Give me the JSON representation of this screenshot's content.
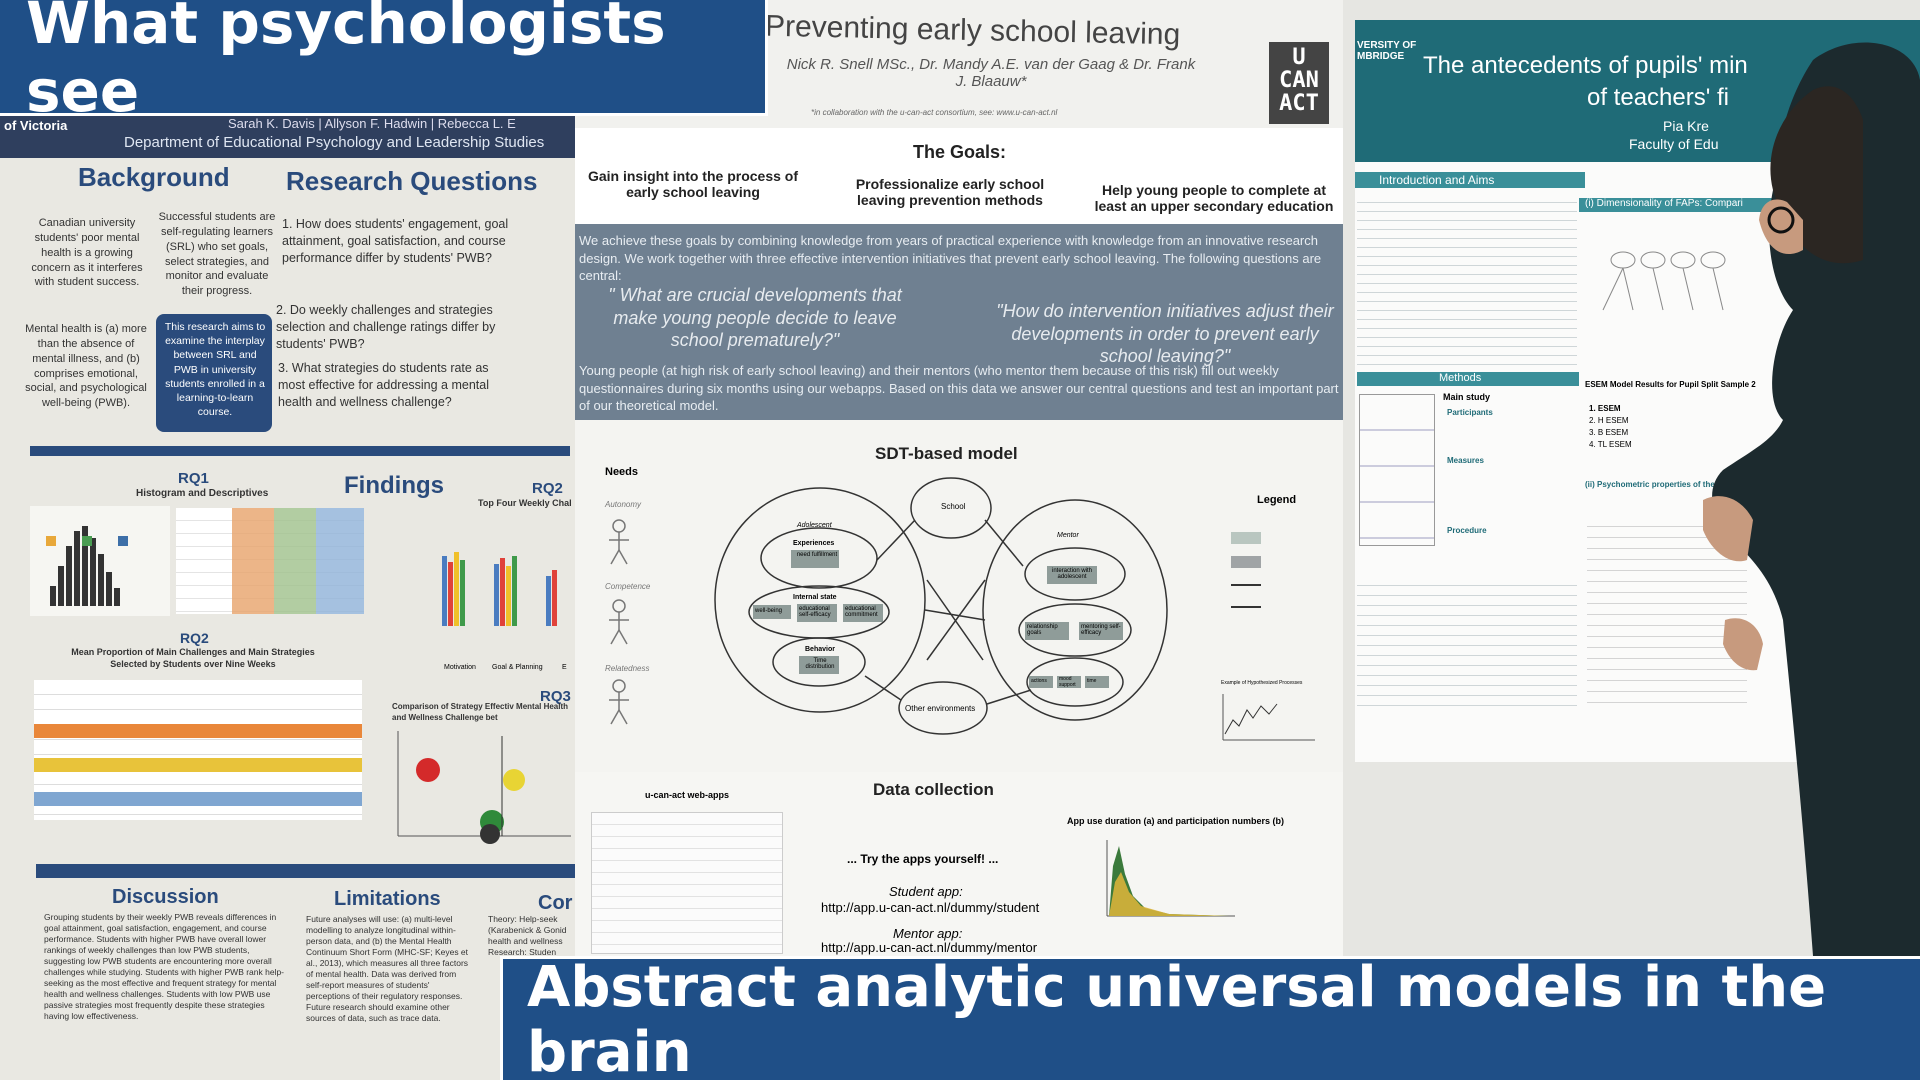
{
  "captions": {
    "top": "What psychologists see",
    "bottom": "Abstract analytic universal models in the brain"
  },
  "poster_left": {
    "affiliation": "of Victoria",
    "authors": "Sarah K. Davis | Allyson F. Hadwin | Rebecca L. E",
    "department": "Department of Educational Psychology and Leadership Studies",
    "background_title": "Background",
    "research_questions_title": "Research Questions",
    "background_col1": "Canadian university students' poor mental health is a growing concern as it interferes with student success.",
    "background_col2": "Successful students are self-regulating learners (SRL) who set goals, select strategies, and monitor and evaluate their progress.",
    "mental_health": "Mental health is (a) more than the absence of mental illness, and (b) comprises emotional, social, and psychological well-being (PWB).",
    "aims": "This research aims to examine the interplay between SRL and PWB in university students enrolled in a learning-to-learn course.",
    "rq_items": [
      "1. How does students' engagement, goal attainment, goal satisfaction, and course performance differ by students' PWB?",
      "2. Do weekly challenges and strategies selection and challenge ratings differ by students' PWB?",
      "3. What strategies do students rate as most effective for addressing a mental health and wellness challenge?"
    ],
    "rq1_title": "RQ1",
    "rq1_sub": "Histogram and Descriptives",
    "findings_title": "Findings",
    "rq2_title": "RQ2",
    "rq2_top": "Top Four Weekly Chal",
    "rq2_sub": "RQ2",
    "rq2_caption": "Mean Proportion of Main Challenges and Main Strategies Selected by Students over Nine Weeks",
    "rq3_title": "RQ3",
    "rq3_caption": "Comparison of Strategy Effectiv Mental Health and Wellness Challenge bet",
    "bar_labels": [
      "Motivation",
      "Goal & Planning",
      "E"
    ],
    "discussion_title": "Discussion",
    "limitations_title": "Limitations",
    "conclusion_title": "Cor",
    "discussion_text": "Grouping students by their weekly PWB reveals differences in goal attainment, goal satisfaction, engagement, and course performance. Students with higher PWB have overall lower rankings of weekly challenges than low PWB students, suggesting low PWB students are encountering more overall challenges while studying. Students with higher PWB rank help-seeking as the most effective and frequent strategy for mental health and wellness challenges. Students with low PWB use passive strategies most frequently despite these strategies having low effectiveness.",
    "limitations_text": "Future analyses will use: (a) multi-level modelling to analyze longitudinal within-person data, and (b) the Mental Health Continuum Short Form (MHC-SF; Keyes et al., 2013), which measures all three factors of mental health. Data was derived from self-report measures of students' perceptions of their regulatory responses. Future research should examine other sources of data, such as trace data.",
    "conclusion_text": "Theory: Help-seek (Karabenick & Gonid health and wellness Research: Studen"
  },
  "poster_middle": {
    "title": "Preventing early school leaving",
    "authors": "Nick R. Snell MSc., Dr. Mandy A.E. van der Gaag & Dr. Frank J. Blaauw*",
    "footnote": "*in collaboration with the u-can-act consortium, see: www.u-can-act.nl",
    "logo_lines": [
      "U",
      "CAN",
      "ACT"
    ],
    "goals_title": "The Goals:",
    "goals": [
      "Gain insight into the process of early school leaving",
      "Professionalize early school leaving prevention methods",
      "Help young people to complete at least an upper secondary education"
    ],
    "intro": "We achieve these goals by combining knowledge from years of practical experience with knowledge from an innovative research design. We work together with three effective intervention initiatives that prevent early school leaving. The following questions are central:",
    "quote1": "\" What are crucial developments that make young people decide to leave school prematurely?\"",
    "quote2": "\"How do intervention initiatives adjust their developments in order to prevent early school leaving?\"",
    "method_text": "Young people (at high risk of early school leaving) and their mentors (who mentor them because of this risk) fill out weekly questionnaires during six months using our webapps. Based on this data we answer our central questions and test an important part of our theoretical model.",
    "model_title": "SDT-based model",
    "needs_label": "Needs",
    "needs": [
      "Autonomy",
      "Competence",
      "Relatedness"
    ],
    "legend_label": "Legend",
    "school_label": "School",
    "other_env_label": "Other environments",
    "adolescent_label": "Adolescent",
    "mentor_label": "Mentor",
    "experiences_label": "Experiences",
    "need_fulfillment": "need fulfillment",
    "internal_state_label": "Internal state",
    "internal_states": [
      "well-being",
      "educational self-efficacy",
      "educational commitment"
    ],
    "behavior_label": "Behavior",
    "time_distribution": "Time distribution",
    "mentor_experiences": "interaction with adolescent",
    "mentor_internal": [
      "relationship goals",
      "mentoring self-efficacy"
    ],
    "mentor_behavior": [
      "actions",
      "mood support",
      "time"
    ],
    "example_label": "Example of Hypothesized Processes",
    "data_collection_title": "Data collection",
    "webapps_label": "u-can-act web-apps",
    "try_apps": "... Try the apps yourself! ...",
    "student_app_label": "Student app:",
    "student_app_url": "http://app.u-can-act.nl/dummy/student",
    "mentor_app_label": "Mentor app:",
    "mentor_app_url": "http://app.u-can-act.nl/dummy/mentor",
    "app_use_caption": "App use duration (a) and participation numbers (b)"
  },
  "poster_right": {
    "affiliation": "VERSITY OF MBRIDGE",
    "title_line1": "The antecedents of pupils' min",
    "title_line2": "of teachers' fi",
    "author": "Pia Kre",
    "faculty": "Faculty of Edu",
    "intro_aims": "Introduction and Aims",
    "methods": "Methods",
    "section1": "(i) Dimensionality of FAPs: Compari",
    "esem_title": "ESEM Model Results for Pupil Split Sample 2",
    "model_rows": [
      "1. ESEM",
      "2. H ESEM",
      "3. B ESEM",
      "4. TL ESEM"
    ],
    "psychometric": "(ii) Psychometric properties of the final instr",
    "main_study": "Main study",
    "participants": "Participants",
    "measures": "Measures",
    "procedure": "Procedure"
  },
  "colors": {
    "caption_bg": "#1f4f87",
    "poster_blue": "#2a4b7c",
    "poster_gray": "#6f8091",
    "poster_teal": "#2a6f79"
  }
}
